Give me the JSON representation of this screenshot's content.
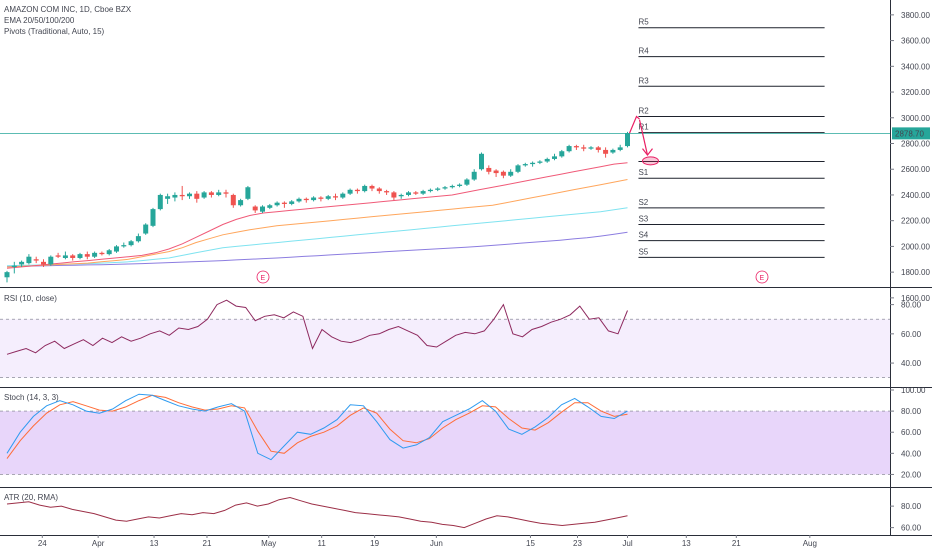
{
  "chart_data": {
    "type": "candlestick",
    "colors": {
      "up": "#26a69a",
      "down": "#ef5350",
      "ema20": "#f05a78",
      "ema50": "#ffa65c",
      "ema100": "#7fe3f0",
      "ema200": "#8c7de0",
      "rsi": "#8e2a5f",
      "stoch_k": "#2f9bf0",
      "stoch_d": "#ff6d38",
      "atr": "#9c2f47",
      "annotation": "#e91e63",
      "last_price": "#26a69a"
    },
    "main": {
      "title": "AMAZON COM INC, 1D, Cboe BZX",
      "indicators": [
        "EMA 20/50/100/200",
        "Pivots (Traditional, Auto, 15)"
      ],
      "ylim": [
        1700,
        3900
      ],
      "yticks": [
        "3800.00",
        "3600.00",
        "3400.00",
        "3200.00",
        "3000.00",
        "2800.00",
        "2600.00",
        "2400.00",
        "2200.00",
        "2000.00",
        "1800.00",
        "1600.00"
      ],
      "last_price": "2878.70",
      "last_price_value": 2878.7,
      "candles": [
        [
          1760,
          1800,
          1720,
          1810
        ],
        [
          1840,
          1850,
          1790,
          1880
        ],
        [
          1860,
          1880,
          1840,
          1890
        ],
        [
          1870,
          1920,
          1860,
          1940
        ],
        [
          1900,
          1890,
          1870,
          1920
        ],
        [
          1880,
          1860,
          1840,
          1900
        ],
        [
          1860,
          1920,
          1850,
          1930
        ],
        [
          1930,
          1920,
          1910,
          1950
        ],
        [
          1910,
          1930,
          1900,
          1960
        ],
        [
          1930,
          1910,
          1890,
          1940
        ],
        [
          1910,
          1940,
          1900,
          1950
        ],
        [
          1940,
          1920,
          1900,
          1960
        ],
        [
          1920,
          1950,
          1910,
          1960
        ],
        [
          1950,
          1940,
          1930,
          1960
        ],
        [
          1940,
          1970,
          1930,
          1980
        ],
        [
          1960,
          2000,
          1950,
          2010
        ],
        [
          2000,
          2010,
          1990,
          2030
        ],
        [
          2010,
          2040,
          2000,
          2050
        ],
        [
          2040,
          2080,
          2030,
          2100
        ],
        [
          2100,
          2170,
          2090,
          2180
        ],
        [
          2160,
          2290,
          2150,
          2300
        ],
        [
          2290,
          2400,
          2280,
          2410
        ],
        [
          2370,
          2390,
          2330,
          2410
        ],
        [
          2380,
          2400,
          2350,
          2420
        ],
        [
          2400,
          2390,
          2360,
          2470
        ],
        [
          2390,
          2410,
          2370,
          2420
        ],
        [
          2410,
          2370,
          2340,
          2430
        ],
        [
          2380,
          2420,
          2370,
          2430
        ],
        [
          2420,
          2400,
          2380,
          2430
        ],
        [
          2400,
          2420,
          2390,
          2440
        ],
        [
          2420,
          2410,
          2380,
          2440
        ],
        [
          2400,
          2320,
          2300,
          2410
        ],
        [
          2320,
          2360,
          2310,
          2370
        ],
        [
          2370,
          2460,
          2360,
          2470
        ],
        [
          2310,
          2280,
          2260,
          2320
        ],
        [
          2270,
          2310,
          2260,
          2320
        ],
        [
          2300,
          2320,
          2290,
          2330
        ],
        [
          2320,
          2340,
          2310,
          2350
        ],
        [
          2340,
          2330,
          2300,
          2350
        ],
        [
          2330,
          2350,
          2320,
          2360
        ],
        [
          2350,
          2370,
          2340,
          2380
        ],
        [
          2370,
          2360,
          2340,
          2380
        ],
        [
          2360,
          2380,
          2350,
          2390
        ],
        [
          2380,
          2370,
          2350,
          2390
        ],
        [
          2370,
          2390,
          2360,
          2400
        ],
        [
          2390,
          2380,
          2360,
          2410
        ],
        [
          2380,
          2410,
          2370,
          2420
        ],
        [
          2410,
          2440,
          2400,
          2450
        ],
        [
          2440,
          2430,
          2410,
          2450
        ],
        [
          2430,
          2470,
          2420,
          2480
        ],
        [
          2470,
          2450,
          2430,
          2480
        ],
        [
          2450,
          2430,
          2410,
          2460
        ],
        [
          2430,
          2420,
          2400,
          2440
        ],
        [
          2420,
          2380,
          2360,
          2430
        ],
        [
          2390,
          2400,
          2370,
          2410
        ],
        [
          2400,
          2420,
          2390,
          2430
        ],
        [
          2420,
          2410,
          2400,
          2430
        ],
        [
          2410,
          2430,
          2400,
          2440
        ],
        [
          2430,
          2440,
          2420,
          2450
        ],
        [
          2440,
          2450,
          2430,
          2460
        ],
        [
          2450,
          2460,
          2440,
          2470
        ],
        [
          2460,
          2470,
          2450,
          2480
        ],
        [
          2470,
          2480,
          2460,
          2490
        ],
        [
          2480,
          2520,
          2470,
          2530
        ],
        [
          2520,
          2580,
          2510,
          2600
        ],
        [
          2600,
          2720,
          2590,
          2730
        ],
        [
          2610,
          2580,
          2560,
          2630
        ],
        [
          2590,
          2570,
          2540,
          2600
        ],
        [
          2580,
          2550,
          2530,
          2590
        ],
        [
          2550,
          2580,
          2540,
          2600
        ],
        [
          2580,
          2630,
          2570,
          2640
        ],
        [
          2630,
          2640,
          2620,
          2650
        ],
        [
          2640,
          2650,
          2620,
          2660
        ],
        [
          2650,
          2660,
          2640,
          2670
        ],
        [
          2660,
          2680,
          2650,
          2690
        ],
        [
          2680,
          2700,
          2670,
          2720
        ],
        [
          2700,
          2740,
          2690,
          2750
        ],
        [
          2740,
          2780,
          2730,
          2790
        ],
        [
          2780,
          2770,
          2750,
          2790
        ],
        [
          2770,
          2760,
          2740,
          2790
        ],
        [
          2760,
          2770,
          2750,
          2780
        ],
        [
          2770,
          2750,
          2730,
          2780
        ],
        [
          2750,
          2720,
          2690,
          2770
        ],
        [
          2730,
          2750,
          2720,
          2760
        ],
        [
          2750,
          2770,
          2740,
          2790
        ],
        [
          2780,
          2878.7,
          2770,
          2890
        ]
      ],
      "ema20": [
        1830,
        1840,
        1850,
        1860,
        1870,
        1880,
        1890,
        1900,
        1910,
        1920,
        1930,
        1950,
        1980,
        2020,
        2070,
        2120,
        2170,
        2210,
        2240,
        2260,
        2270,
        2280,
        2290,
        2300,
        2310,
        2320,
        2330,
        2340,
        2350,
        2360,
        2370,
        2380,
        2390,
        2400,
        2420,
        2440,
        2460,
        2480,
        2500,
        2520,
        2540,
        2560,
        2580,
        2600,
        2620,
        2640,
        2650
      ],
      "ema50": [
        1840,
        1845,
        1850,
        1855,
        1860,
        1865,
        1870,
        1880,
        1890,
        1900,
        1920,
        1940,
        1960,
        1990,
        2030,
        2060,
        2090,
        2110,
        2130,
        2145,
        2160,
        2170,
        2180,
        2190,
        2200,
        2210,
        2220,
        2230,
        2240,
        2250,
        2260,
        2270,
        2280,
        2290,
        2300,
        2310,
        2320,
        2340,
        2360,
        2380,
        2400,
        2420,
        2440,
        2460,
        2480,
        2500,
        2520
      ],
      "ema100": [
        1850,
        1852,
        1855,
        1858,
        1860,
        1863,
        1866,
        1870,
        1875,
        1880,
        1890,
        1900,
        1910,
        1930,
        1950,
        1970,
        1990,
        2000,
        2010,
        2020,
        2030,
        2040,
        2050,
        2060,
        2070,
        2080,
        2090,
        2100,
        2110,
        2120,
        2130,
        2140,
        2150,
        2160,
        2170,
        2180,
        2190,
        2200,
        2210,
        2220,
        2230,
        2240,
        2250,
        2260,
        2270,
        2285,
        2300
      ],
      "ema200": [
        1845,
        1846,
        1848,
        1850,
        1852,
        1854,
        1856,
        1858,
        1860,
        1863,
        1866,
        1870,
        1874,
        1878,
        1882,
        1886,
        1890,
        1895,
        1900,
        1905,
        1910,
        1916,
        1922,
        1928,
        1934,
        1940,
        1946,
        1952,
        1958,
        1964,
        1970,
        1976,
        1982,
        1988,
        1994,
        2000,
        2008,
        2016,
        2024,
        2032,
        2040,
        2048,
        2058,
        2068,
        2080,
        2095,
        2110
      ],
      "pivots": [
        {
          "label": "R5",
          "value": 3700
        },
        {
          "label": "R4",
          "value": 3475
        },
        {
          "label": "R3",
          "value": 3245
        },
        {
          "label": "R2",
          "value": 3010
        },
        {
          "label": "R1",
          "value": 2885
        },
        {
          "label": "P",
          "value": 2660
        },
        {
          "label": "S1",
          "value": 2530
        },
        {
          "label": "S2",
          "value": 2300
        },
        {
          "label": "S3",
          "value": 2170
        },
        {
          "label": "S4",
          "value": 2045
        },
        {
          "label": "S5",
          "value": 1915
        }
      ],
      "earnings_markers": [
        {
          "label": "E",
          "index": 54
        },
        {
          "label": "E",
          "index": 153
        }
      ]
    },
    "rsi": {
      "title": "RSI (10, close)",
      "ylim": [
        25,
        90
      ],
      "band": [
        30,
        70
      ],
      "yticks": [
        "80.00",
        "60.00",
        "40.00"
      ],
      "values": [
        46,
        48,
        50,
        47,
        52,
        55,
        50,
        53,
        56,
        52,
        57,
        54,
        58,
        55,
        57,
        60,
        62,
        59,
        64,
        63,
        65,
        70,
        80,
        83,
        79,
        78,
        69,
        72,
        73,
        71,
        75,
        72,
        50,
        63,
        58,
        55,
        54,
        56,
        59,
        60,
        63,
        65,
        62,
        59,
        52,
        51,
        55,
        59,
        61,
        60,
        62,
        70,
        80,
        60,
        58,
        63,
        65,
        68,
        70,
        73,
        79,
        70,
        71,
        62,
        60,
        76
      ]
    },
    "stoch": {
      "title": "Stoch (14, 3, 3)",
      "ylim": [
        10,
        100
      ],
      "band": [
        20,
        80
      ],
      "yticks": [
        "100.00",
        "80.00",
        "60.00",
        "40.00",
        "20.00"
      ],
      "k": [
        40,
        60,
        75,
        85,
        90,
        86,
        80,
        78,
        82,
        90,
        96,
        95,
        90,
        85,
        82,
        80,
        84,
        87,
        80,
        40,
        34,
        47,
        60,
        58,
        64,
        72,
        86,
        85,
        70,
        53,
        45,
        48,
        55,
        70,
        76,
        82,
        90,
        80,
        63,
        58,
        65,
        74,
        86,
        92,
        84,
        75,
        73,
        80
      ],
      "d": [
        35,
        52,
        66,
        78,
        86,
        89,
        85,
        81,
        80,
        84,
        90,
        95,
        93,
        88,
        84,
        81,
        82,
        85,
        83,
        61,
        42,
        40,
        50,
        56,
        60,
        66,
        76,
        83,
        78,
        63,
        52,
        50,
        54,
        64,
        72,
        78,
        85,
        84,
        73,
        64,
        62,
        69,
        79,
        88,
        88,
        80,
        75,
        77
      ]
    },
    "atr": {
      "title": "ATR (20, RMA)",
      "ylim": [
        55,
        95
      ],
      "yticks": [
        "80.00",
        "60.00"
      ],
      "values": [
        82,
        83,
        84,
        81,
        79,
        80,
        77,
        75,
        73,
        70,
        67,
        66,
        68,
        70,
        69,
        71,
        73,
        72,
        74,
        73,
        76,
        81,
        83,
        80,
        82,
        86,
        88,
        85,
        82,
        80,
        78,
        76,
        74,
        73,
        72,
        71,
        70,
        68,
        66,
        65,
        63,
        62,
        60,
        64,
        68,
        71,
        70,
        68,
        66,
        64,
        63,
        62,
        63,
        64,
        65,
        67,
        69,
        71
      ]
    },
    "xaxis": {
      "ticks": [
        {
          "label": "24",
          "index": 12
        },
        {
          "label": "Apr",
          "index": 31
        },
        {
          "label": "13",
          "index": 50
        },
        {
          "label": "21",
          "index": 68
        },
        {
          "label": "May",
          "index": 89
        },
        {
          "label": "11",
          "index": 107
        },
        {
          "label": "19",
          "index": 125
        },
        {
          "label": "Jun",
          "index": 146
        },
        {
          "label": "15",
          "index": 178
        },
        {
          "label": "23",
          "index": 194
        },
        {
          "label": "Jul",
          "index": 211
        },
        {
          "label": "13",
          "index": 231
        },
        {
          "label": "21",
          "index": 248
        },
        {
          "label": "Aug",
          "index": 273
        }
      ]
    }
  }
}
